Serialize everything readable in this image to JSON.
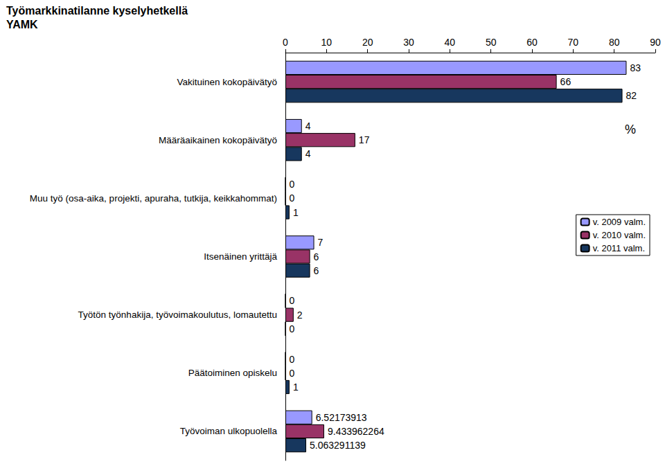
{
  "chart_data": {
    "type": "bar",
    "title": "Työmarkkinatilanne kyselyhetkellä\nYAMK",
    "xlabel": "%",
    "orientation": "horizontal",
    "categories": [
      "Vakituinen kokopäivätyö",
      "Määräaikainen kokopäivätyö",
      "Muu työ (osa-aika, projekti, apuraha, tutkija, keikkahommat)",
      "Itsenäinen yrittäjä",
      "Työtön työnhakija, työvoimakoulutus, lomautettu",
      "Päätoiminen opiskelu",
      "Työvoiman ulkopuolella"
    ],
    "series": [
      {
        "name": "v. 2009 valm.",
        "color": "#9999ff",
        "values": [
          83,
          4,
          0,
          7,
          0,
          0,
          6.52173913
        ]
      },
      {
        "name": "v. 2010 valm.",
        "color": "#993366",
        "values": [
          66,
          17,
          0,
          6,
          2,
          0,
          9.433962264
        ]
      },
      {
        "name": "v. 2011 valm.",
        "color": "#17375e",
        "values": [
          82,
          4,
          1,
          6,
          0,
          1,
          5.063291139
        ]
      }
    ],
    "xlim": [
      0,
      90
    ],
    "xticks": [
      0,
      10,
      20,
      30,
      40,
      50,
      60,
      70,
      80,
      90
    ],
    "grid": false,
    "legend": "right",
    "data_labels": true
  }
}
